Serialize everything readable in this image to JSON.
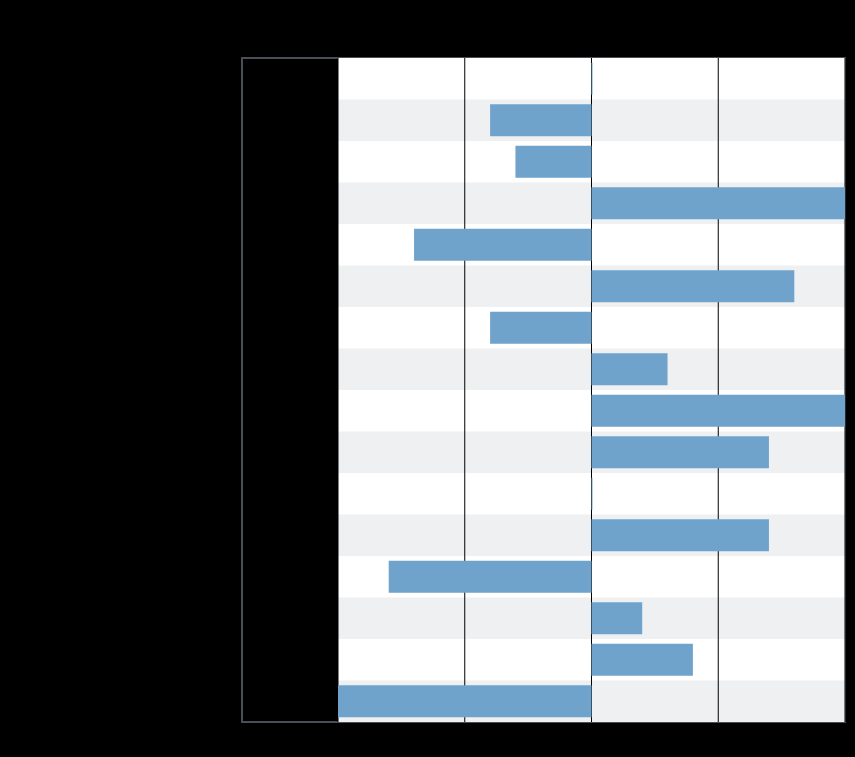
{
  "chart_data": {
    "type": "barh",
    "categories": [
      null,
      null,
      null,
      null,
      null,
      null,
      null,
      null,
      null,
      null,
      null,
      null,
      null,
      null,
      null,
      null
    ],
    "values": [
      0,
      -0.8,
      -0.6,
      2.0,
      -1.4,
      1.6,
      -0.8,
      0.6,
      2.0,
      1.4,
      0,
      1.4,
      -1.6,
      0.4,
      0.8,
      -2.0
    ],
    "color": "#6fa3cc",
    "xlim": [
      -2,
      2
    ],
    "xticks": [
      -2,
      -1,
      0,
      1,
      2
    ],
    "grid": true
  }
}
